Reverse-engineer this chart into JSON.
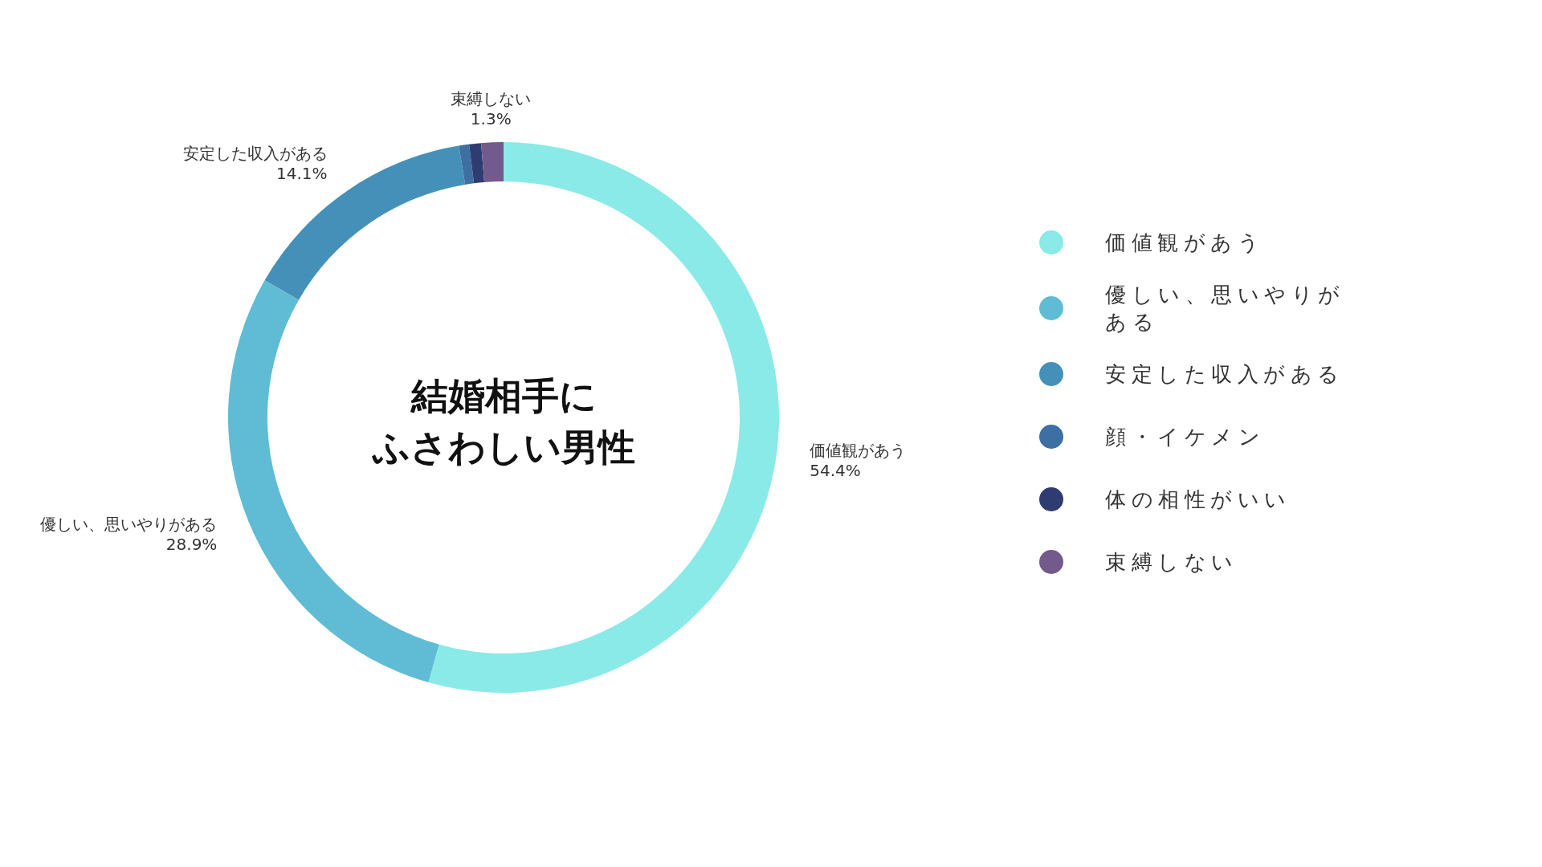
{
  "chart_data": {
    "type": "donut",
    "title": "結婚相手にふさわしい男性",
    "categories": [
      "価値観があう",
      "優しい、思いやりがある",
      "安定した収入がある",
      "顔・イケメン",
      "体の相性がいい",
      "束縛しない"
    ],
    "values": [
      54.4,
      28.9,
      14.1,
      0.6,
      0.7,
      1.3
    ],
    "colors": [
      "#8aeae8",
      "#5fbcd4",
      "#4590b8",
      "#3d6fa3",
      "#2f3c72",
      "#735a8c"
    ],
    "value_labels": [
      "54.4%",
      "28.9%",
      "14.1%",
      null,
      null,
      "1.3%"
    ],
    "legend": "right"
  }
}
